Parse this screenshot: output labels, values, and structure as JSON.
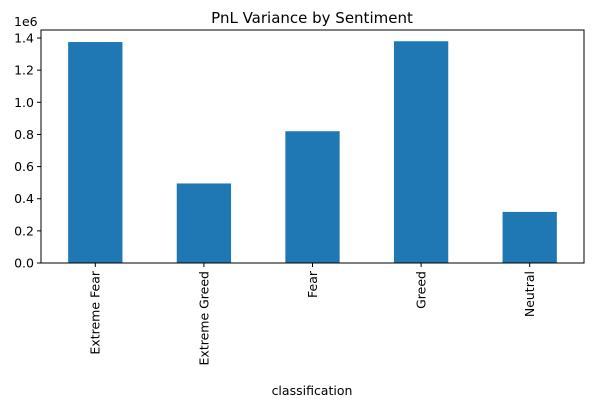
{
  "chart_data": {
    "type": "bar",
    "title": "PnL Variance by Sentiment",
    "xlabel": "classification",
    "ylabel": "",
    "y_offset_label": "1e6",
    "categories": [
      "Extreme Fear",
      "Extreme Greed",
      "Fear",
      "Greed",
      "Neutral"
    ],
    "values": [
      1375000,
      495000,
      820000,
      1380000,
      318000
    ],
    "ylim": [
      0,
      1450000
    ],
    "y_ticks": [
      0,
      200000,
      400000,
      600000,
      800000,
      1000000,
      1200000,
      1400000
    ],
    "y_tick_labels": [
      "0.0",
      "0.2",
      "0.4",
      "0.6",
      "0.8",
      "1.0",
      "1.2",
      "1.4"
    ],
    "bar_color": "#1f77b4",
    "grid": false,
    "legend": "none"
  }
}
